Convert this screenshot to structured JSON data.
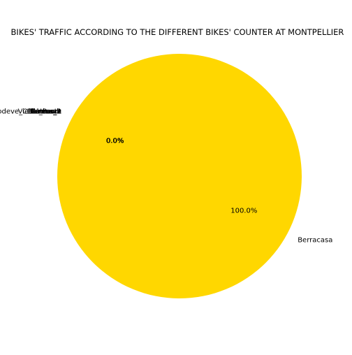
{
  "chart_data": {
    "type": "pie",
    "title": "BIKES' TRAFFIC ACCORDING TO THE DIFFERENT BIKES' COUNTER AT MONTPELLIER",
    "start_angle_deg": 151.5,
    "direction": "counterclockwise",
    "slices": [
      {
        "label": "Berracasa",
        "value": 100.0,
        "pct_label": "100.0%",
        "color": "#ffd700"
      },
      {
        "label": "Lodeve_Celleneuve",
        "value": 0.0,
        "pct_label": "0.0%",
        "color": "#ffd700"
      },
      {
        "label": "Tanneurs",
        "value": 0.0,
        "pct_label": "0.0%",
        "color": "#ffd700"
      },
      {
        "label": "Vieille_Poste",
        "value": 0.0,
        "pct_label": "0.0%",
        "color": "#ffd700"
      },
      {
        "label": "Gerhardt",
        "value": 0.0,
        "pct_label": "0.0%",
        "color": "#ffd700"
      },
      {
        "label": "Laverune",
        "value": 0.0,
        "pct_label": "0.0%",
        "color": "#ffd700"
      },
      {
        "label": "Delmas_1",
        "value": 0.0,
        "pct_label": "0.0%",
        "color": "#ffd700"
      },
      {
        "label": "Delmas_2",
        "value": 0.0,
        "pct_label": "0.0%",
        "color": "#ffd700"
      },
      {
        "label": "Lattes_1",
        "value": 0.0,
        "pct_label": "0.0%",
        "color": "#ffd700"
      },
      {
        "label": "Lattes_2",
        "value": 0.0,
        "pct_label": "0.0%",
        "color": "#ffd700"
      }
    ]
  }
}
